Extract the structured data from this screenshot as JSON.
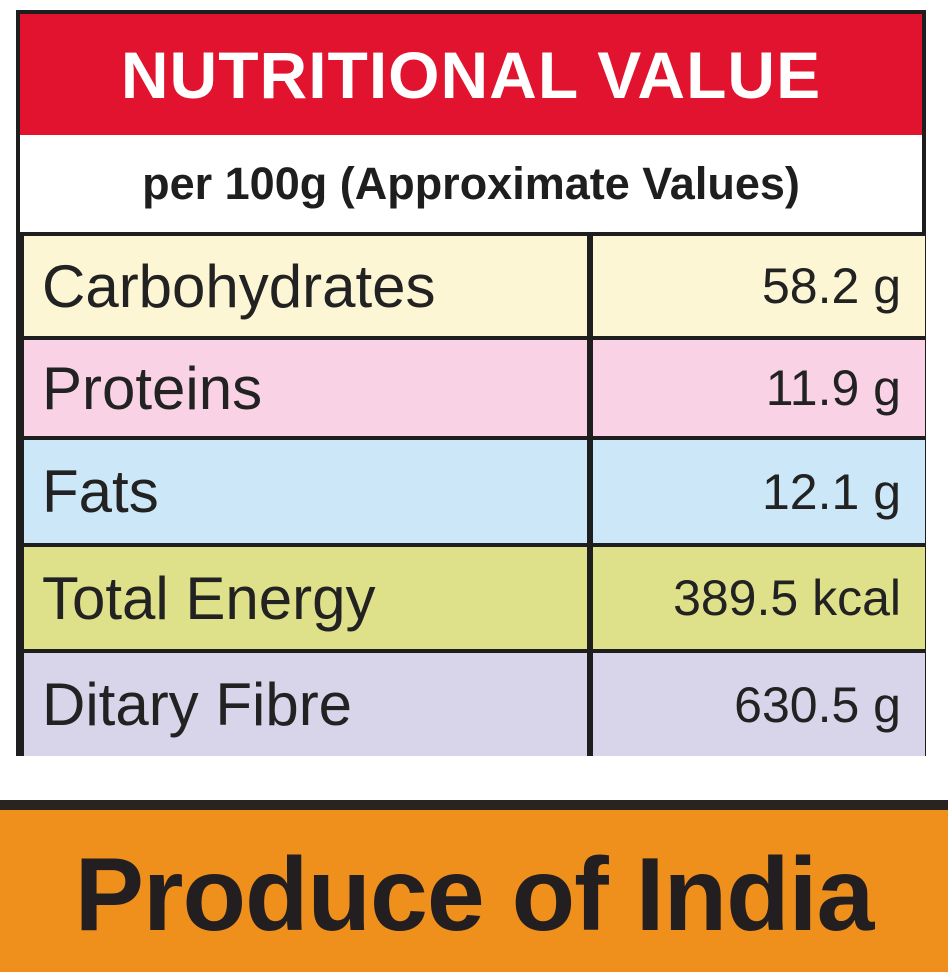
{
  "header": {
    "title": "NUTRITIONAL VALUE",
    "subtitle": "per 100g (Approximate Values)"
  },
  "table": {
    "rows": [
      [
        "Carbohydrates",
        "58.2 g"
      ],
      [
        "Proteins",
        "11.9 g"
      ],
      [
        "Fats",
        "12.1 g"
      ],
      [
        "Total Energy",
        "389.5 kcal"
      ],
      [
        "Ditary Fibre",
        "630.5 g"
      ]
    ]
  },
  "footer": {
    "text": "Produce of India"
  }
}
